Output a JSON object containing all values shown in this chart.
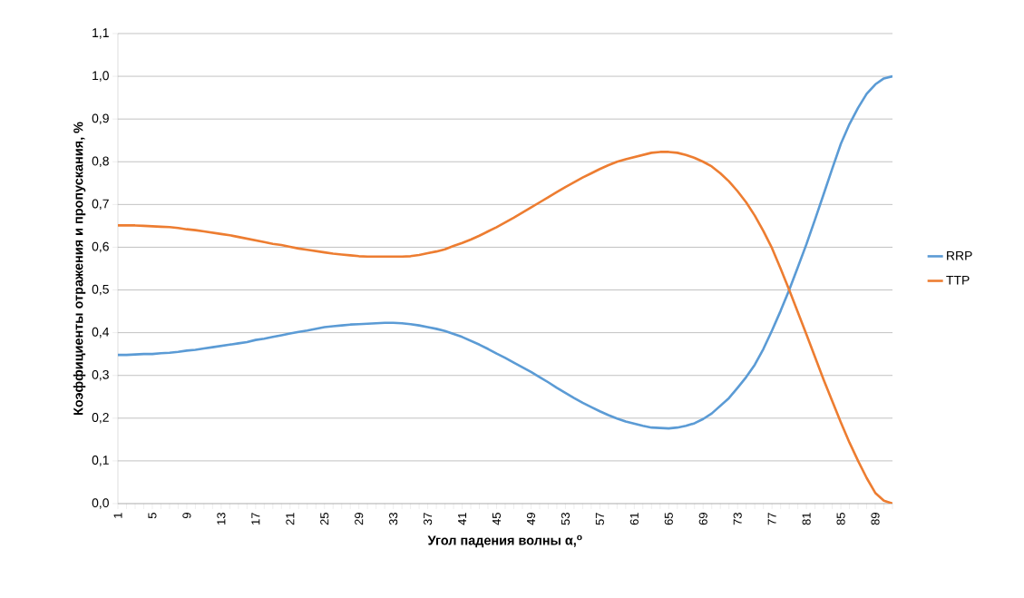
{
  "chart_data": {
    "type": "line",
    "xlabel": "Угол падения волны α,$^{o}$",
    "ylabel": "Коэффициенты отражения и пропускания, %",
    "categories": [
      "1",
      null,
      null,
      null,
      "5",
      null,
      null,
      null,
      "9",
      null,
      null,
      null,
      "13",
      null,
      null,
      null,
      "17",
      null,
      null,
      null,
      "21",
      null,
      null,
      null,
      "25",
      null,
      null,
      null,
      "29",
      null,
      null,
      null,
      "33",
      null,
      null,
      null,
      "37",
      null,
      null,
      null,
      "41",
      null,
      null,
      null,
      "45",
      null,
      null,
      null,
      "49",
      null,
      null,
      null,
      "53",
      null,
      null,
      null,
      "57",
      null,
      null,
      null,
      "61",
      null,
      null,
      null,
      "65",
      null,
      null,
      null,
      "69",
      null,
      null,
      null,
      "73",
      null,
      null,
      null,
      "77",
      null,
      null,
      null,
      "81",
      null,
      null,
      null,
      "85",
      null,
      null,
      null,
      "89",
      null,
      null
    ],
    "series": [
      {
        "name": "RRP",
        "color": "#5b9bd5",
        "values": [
          0.348,
          0.348,
          0.349,
          0.35,
          0.35,
          0.352,
          0.353,
          0.355,
          0.358,
          0.36,
          0.363,
          0.366,
          0.369,
          0.372,
          0.375,
          0.378,
          0.383,
          0.386,
          0.39,
          0.394,
          0.398,
          0.402,
          0.405,
          0.409,
          0.413,
          0.415,
          0.417,
          0.419,
          0.42,
          0.421,
          0.422,
          0.423,
          0.423,
          0.422,
          0.42,
          0.417,
          0.413,
          0.409,
          0.404,
          0.397,
          0.39,
          0.381,
          0.372,
          0.362,
          0.351,
          0.341,
          0.33,
          0.319,
          0.308,
          0.296,
          0.284,
          0.271,
          0.259,
          0.247,
          0.236,
          0.226,
          0.216,
          0.207,
          0.199,
          0.192,
          0.187,
          0.182,
          0.178,
          0.177,
          0.176,
          0.178,
          0.182,
          0.188,
          0.198,
          0.211,
          0.229,
          0.247,
          0.271,
          0.296,
          0.325,
          0.362,
          0.405,
          0.451,
          0.5,
          0.553,
          0.607,
          0.665,
          0.724,
          0.784,
          0.842,
          0.888,
          0.926,
          0.959,
          0.981,
          0.995,
          1.0
        ]
      },
      {
        "name": "TTP",
        "color": "#ed7d31",
        "values": [
          0.651,
          0.651,
          0.651,
          0.65,
          0.649,
          0.648,
          0.647,
          0.645,
          0.642,
          0.64,
          0.637,
          0.634,
          0.631,
          0.628,
          0.624,
          0.62,
          0.616,
          0.612,
          0.608,
          0.605,
          0.601,
          0.597,
          0.594,
          0.591,
          0.588,
          0.585,
          0.583,
          0.581,
          0.579,
          0.578,
          0.578,
          0.578,
          0.578,
          0.578,
          0.579,
          0.582,
          0.586,
          0.59,
          0.595,
          0.603,
          0.61,
          0.618,
          0.627,
          0.637,
          0.647,
          0.658,
          0.669,
          0.681,
          0.693,
          0.705,
          0.717,
          0.729,
          0.741,
          0.752,
          0.763,
          0.773,
          0.783,
          0.792,
          0.8,
          0.806,
          0.811,
          0.816,
          0.821,
          0.823,
          0.823,
          0.821,
          0.816,
          0.809,
          0.8,
          0.789,
          0.773,
          0.754,
          0.731,
          0.705,
          0.674,
          0.638,
          0.598,
          0.55,
          0.5,
          0.448,
          0.396,
          0.343,
          0.29,
          0.24,
          0.19,
          0.143,
          0.1,
          0.06,
          0.025,
          0.007,
          0.0
        ]
      }
    ],
    "ylim": [
      0,
      1.1
    ],
    "yticks": [
      {
        "value": 0,
        "label": "0,0"
      },
      {
        "value": 0.1,
        "label": "0,1"
      },
      {
        "value": 0.2,
        "label": "0,2"
      },
      {
        "value": 0.3,
        "label": "0,3"
      },
      {
        "value": 0.4,
        "label": "0,4"
      },
      {
        "value": 0.5,
        "label": "0,5"
      },
      {
        "value": 0.6,
        "label": "0,6"
      },
      {
        "value": 0.7,
        "label": "0,7"
      },
      {
        "value": 0.8,
        "label": "0,8"
      },
      {
        "value": 0.9,
        "label": "0,9"
      },
      {
        "value": 1.0,
        "label": "1,0"
      },
      {
        "value": 1.1,
        "label": "1,1"
      }
    ],
    "grid": "y",
    "legend": "right",
    "marker": "none",
    "line_style": "solid"
  }
}
